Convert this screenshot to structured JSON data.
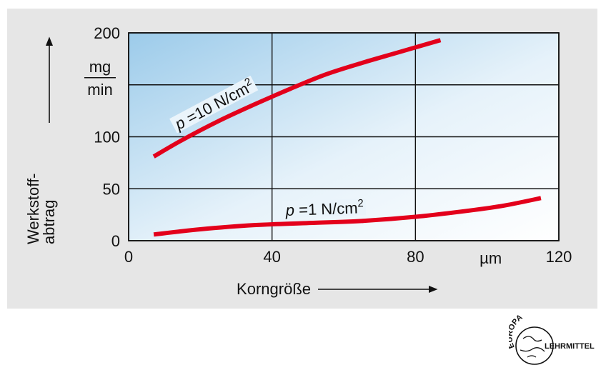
{
  "chart_data": {
    "type": "line",
    "xlabel": "Korngröße",
    "ylabel": "Werkstoff-abtrag",
    "ylabel_lines": [
      "Werkstoff-",
      "abtrag"
    ],
    "yunit_num": "mg",
    "yunit_den": "min",
    "xunit": "µm",
    "xlim": [
      0,
      120
    ],
    "ylim": [
      0,
      200
    ],
    "x_ticks": [
      0,
      40,
      80,
      120
    ],
    "x_tick_labels": [
      "0",
      "40",
      "80",
      "120"
    ],
    "y_ticks": [
      0,
      50,
      100,
      200
    ],
    "y_tick_labels": [
      "0",
      "50",
      "100",
      "200"
    ],
    "grid": true,
    "series": [
      {
        "name": "p =10 N/cm2",
        "label_p": "p",
        "label_eq": " =10 N/cm",
        "label_sup": "2",
        "color": "#e3001b",
        "x": [
          7,
          15,
          25,
          35,
          45,
          55,
          65,
          75,
          87
        ],
        "y": [
          81,
          97,
          115,
          131,
          146,
          160,
          171,
          181,
          193
        ]
      },
      {
        "name": "p =1 N/cm2",
        "label_p": "p",
        "label_eq": " =1 N/cm",
        "label_sup": "2",
        "color": "#e3001b",
        "x": [
          7,
          20,
          35,
          50,
          65,
          80,
          95,
          105,
          115
        ],
        "y": [
          6,
          11,
          15,
          17,
          19,
          23,
          29,
          34,
          41
        ]
      }
    ]
  },
  "logo": {
    "text_top": "EUROPA",
    "text_right": "LEHRMITTEL"
  }
}
